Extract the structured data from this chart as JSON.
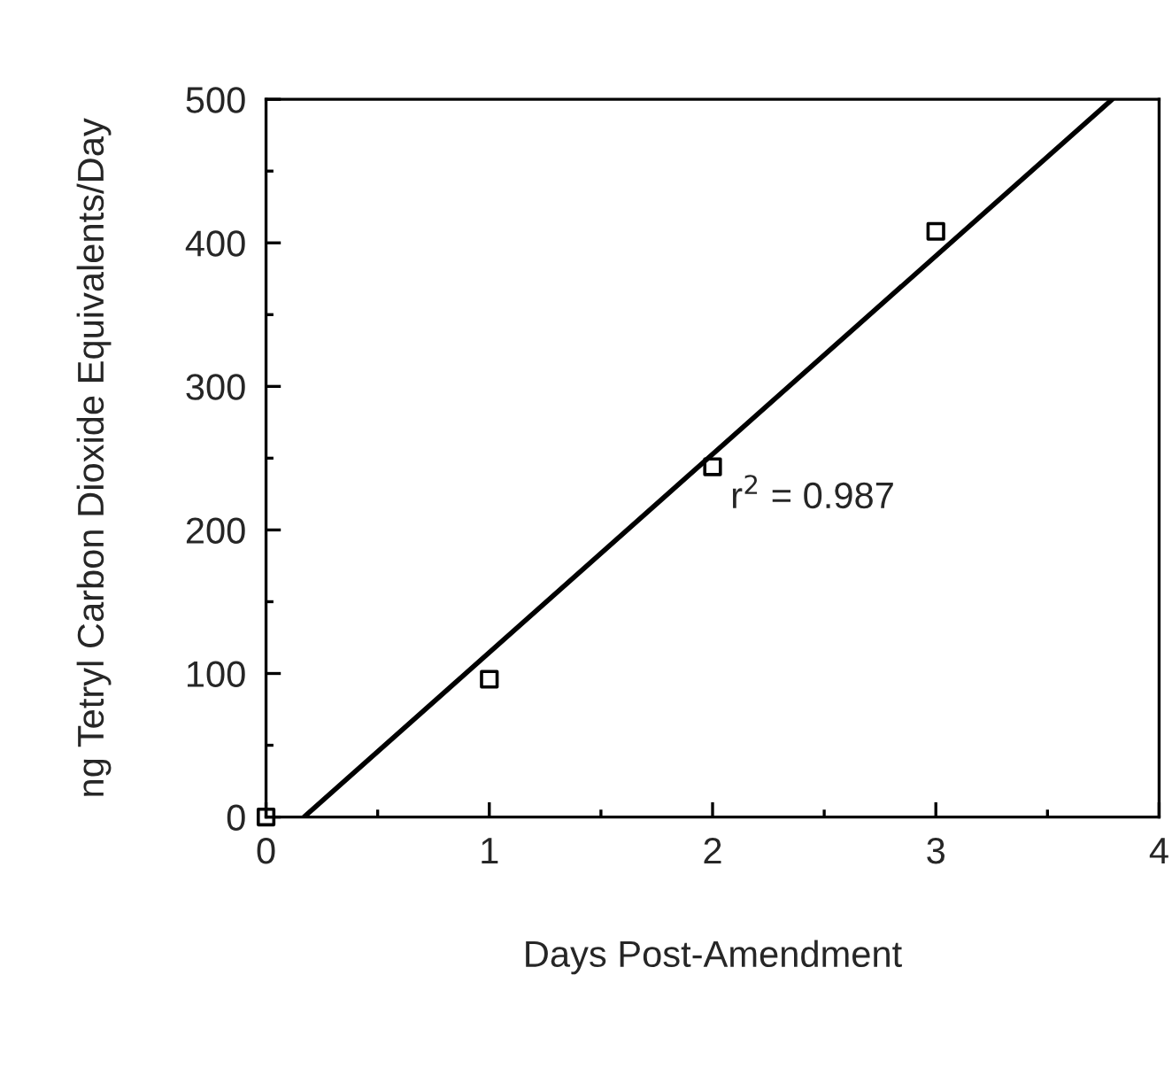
{
  "chart_data": {
    "type": "scatter",
    "xlabel": "Days Post-Amendment",
    "ylabel": "ng Tetryl Carbon Dioxide Equivalents/Day",
    "series": [
      {
        "color": "#000000",
        "marker": "square",
        "x": [
          0,
          1,
          2,
          3
        ],
        "values": [
          0,
          96,
          244,
          408
        ]
      },
      {
        "type": "line",
        "color": "#000000",
        "marker": "none",
        "line_style": "solid",
        "x": [
          0.17,
          3.79
        ],
        "values": [
          0,
          500
        ]
      }
    ],
    "annotations": [
      "r$^{2}$ = 0.987"
    ],
    "xlim": [
      0,
      4
    ],
    "ylim": [
      0,
      500
    ],
    "xticks": [
      0,
      {
        "value": 0.5,
        "label": null
      },
      1,
      {
        "value": 1.5,
        "label": null
      },
      2,
      {
        "value": 2.5,
        "label": null
      },
      3,
      {
        "value": 3.5,
        "label": null
      },
      4
    ],
    "yticks": [
      0,
      {
        "value": 50,
        "label": null
      },
      100,
      {
        "value": 150,
        "label": null
      },
      200,
      {
        "value": 250,
        "label": null
      },
      300,
      {
        "value": 350,
        "label": null
      },
      400,
      {
        "value": 450,
        "label": null
      },
      500
    ],
    "grid": false,
    "legend": false
  }
}
